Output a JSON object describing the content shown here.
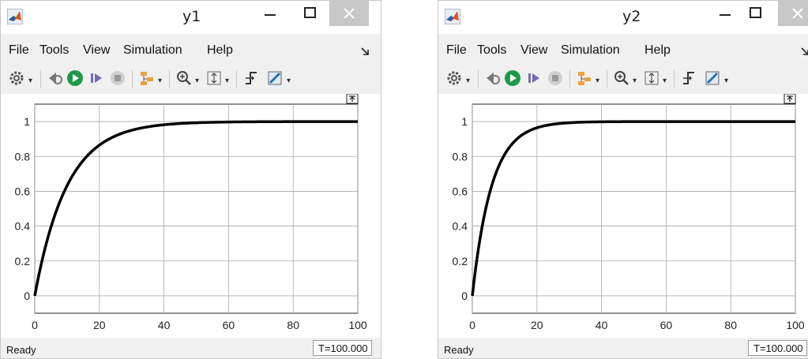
{
  "windows": [
    {
      "title": "y1",
      "menu": [
        "File",
        "Tools",
        "View",
        "Simulation",
        "Help"
      ],
      "status": "Ready",
      "time_display": "T=100.000",
      "chart_data": {
        "type": "line",
        "xlim": [
          0,
          100
        ],
        "ylim": [
          -0.1,
          1.1
        ],
        "x_ticks": [
          "0",
          "20",
          "40",
          "60",
          "80",
          "100"
        ],
        "y_ticks": [
          "0",
          "0.2",
          "0.4",
          "0.6",
          "0.8",
          "1"
        ],
        "grid": true,
        "series": [
          {
            "time_constant": 10,
            "x": [
              0,
              5,
              10,
              15,
              20,
              25,
              30,
              40,
              50,
              60,
              80,
              100
            ],
            "y": [
              0,
              0.39,
              0.63,
              0.78,
              0.86,
              0.92,
              0.95,
              0.98,
              0.99,
              1.0,
              1.0,
              1.0
            ]
          }
        ]
      }
    },
    {
      "title": "y2",
      "menu": [
        "File",
        "Tools",
        "View",
        "Simulation",
        "Help"
      ],
      "status": "Ready",
      "time_display": "T=100.000",
      "chart_data": {
        "type": "line",
        "xlim": [
          0,
          100
        ],
        "ylim": [
          -0.1,
          1.1
        ],
        "x_ticks": [
          "0",
          "20",
          "40",
          "60",
          "80",
          "100"
        ],
        "y_ticks": [
          "0",
          "0.2",
          "0.4",
          "0.6",
          "0.8",
          "1"
        ],
        "grid": true,
        "series": [
          {
            "time_constant": 6,
            "x": [
              0,
              3,
              6,
              9,
              12,
              15,
              20,
              25,
              30,
              40,
              60,
              100
            ],
            "y": [
              0,
              0.39,
              0.63,
              0.78,
              0.86,
              0.92,
              0.96,
              0.98,
              0.99,
              1.0,
              1.0,
              1.0
            ]
          }
        ]
      }
    }
  ]
}
